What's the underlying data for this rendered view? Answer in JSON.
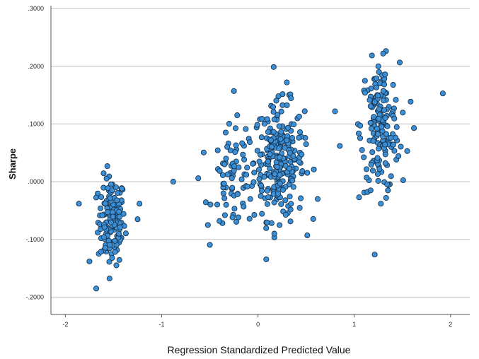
{
  "chart_data": {
    "type": "scatter",
    "title": "",
    "xlabel": "Regression Standardized Predicted Value",
    "ylabel": "Sharpe",
    "xlim": [
      -2.15,
      2.2
    ],
    "ylim": [
      -0.23,
      0.305
    ],
    "x_ticks": [
      "-2",
      "-1",
      "0",
      "1",
      "2"
    ],
    "x_tick_values": [
      -2,
      -1,
      0,
      1,
      2
    ],
    "y_ticks": [
      ".3000",
      ".2000",
      ".1000",
      ".0000",
      "-.1000",
      "-.2000"
    ],
    "y_tick_values": [
      0.3,
      0.2,
      0.1,
      0.0,
      -0.1,
      -0.2
    ],
    "grid": true,
    "colors": {
      "marker_fill": "#3a8fd6",
      "marker_edge": "#1a3550",
      "grid": "#c8c8c8",
      "axis": "#555555"
    },
    "series": [
      {
        "clusters": [
          {
            "cx": -1.52,
            "cy": -0.068,
            "sx": 0.07,
            "sy": 0.038,
            "n": 150
          },
          {
            "cx": 0.22,
            "cy": 0.035,
            "sx": 0.13,
            "sy": 0.05,
            "n": 260
          },
          {
            "cx": -0.25,
            "cy": 0.005,
            "sx": 0.11,
            "sy": 0.045,
            "n": 70
          },
          {
            "cx": 1.27,
            "cy": 0.095,
            "sx": 0.1,
            "sy": 0.055,
            "n": 170
          }
        ],
        "points": [
          [
            -1.68,
            -0.185
          ],
          [
            -1.86,
            -0.038
          ],
          [
            -1.75,
            -0.138
          ],
          [
            -1.23,
            -0.038
          ],
          [
            -1.25,
            -0.065
          ],
          [
            -0.88,
            0.0
          ],
          [
            -0.62,
            0.006
          ],
          [
            -0.52,
            -0.075
          ],
          [
            -0.25,
            0.157
          ],
          [
            -0.2,
            0.025
          ],
          [
            0.3,
            0.172
          ],
          [
            0.17,
            -0.09
          ],
          [
            0.8,
            0.122
          ],
          [
            0.85,
            0.062
          ],
          [
            0.5,
            0.065
          ],
          [
            1.92,
            0.153
          ],
          [
            1.62,
            0.093
          ],
          [
            1.3,
            0.222
          ],
          [
            1.25,
            0.2
          ],
          [
            1.05,
            -0.027
          ],
          [
            1.17,
            -0.015
          ],
          [
            1.35,
            -0.015
          ],
          [
            1.55,
            0.053
          ],
          [
            0.62,
            -0.03
          ],
          [
            -0.4,
            -0.068
          ]
        ]
      }
    ]
  }
}
